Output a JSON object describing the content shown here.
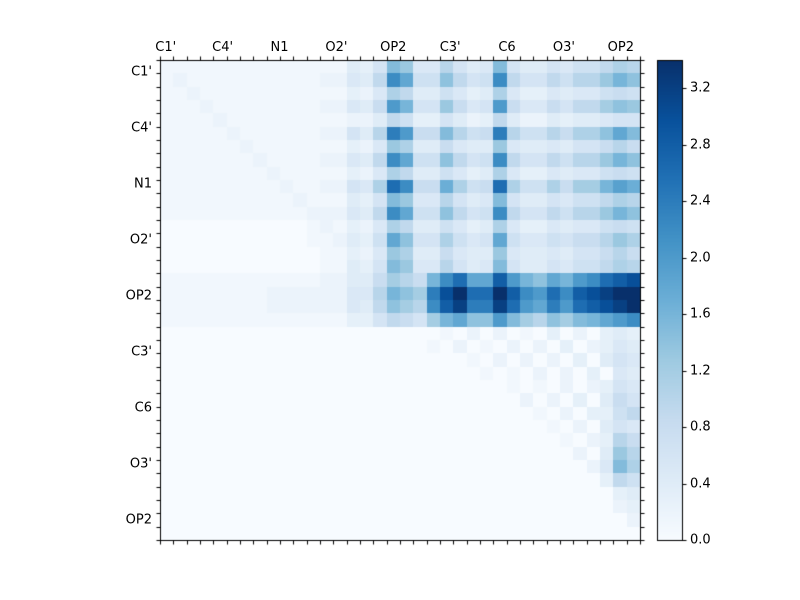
{
  "figure": {
    "background": "#ffffff",
    "frame_color": "#000000",
    "tick_color": "#000000"
  },
  "chart_data": {
    "type": "heatmap",
    "title": "",
    "xlabel": "",
    "ylabel": "",
    "colormap": "Blues",
    "vmin": 0.0,
    "vmax": 3.4,
    "legend_position": "colorbar-right",
    "grid": false,
    "x_labels": [
      "C1'",
      "C4'",
      "N1",
      "O2'",
      "OP2",
      "C3'",
      "C6",
      "O3'",
      "OP2"
    ],
    "y_labels": [
      "C1'",
      "C4'",
      "N1",
      "O2'",
      "OP2",
      "C3'",
      "C6",
      "O3'",
      "OP2"
    ],
    "colorbar_ticks": [
      "0.0",
      "0.4",
      "0.8",
      "1.2",
      "1.6",
      "2.0",
      "2.4",
      "2.8",
      "3.2"
    ],
    "colorbar_tick_values": [
      0.0,
      0.4,
      0.8,
      1.2,
      1.6,
      2.0,
      2.4,
      2.8,
      3.2
    ],
    "n_rows": 36,
    "n_cols": 36,
    "colormap_stops": [
      {
        "t": 0.0,
        "c": "#f7fbff"
      },
      {
        "t": 0.125,
        "c": "#deebf7"
      },
      {
        "t": 0.25,
        "c": "#c6dbef"
      },
      {
        "t": 0.375,
        "c": "#9ecae1"
      },
      {
        "t": 0.5,
        "c": "#6baed6"
      },
      {
        "t": 0.625,
        "c": "#4292c6"
      },
      {
        "t": 0.75,
        "c": "#2171b5"
      },
      {
        "t": 0.875,
        "c": "#08519c"
      },
      {
        "t": 1.0,
        "c": "#08306b"
      }
    ],
    "values": [
      [
        0.1,
        0.1,
        0.1,
        0.1,
        0.1,
        0.1,
        0.1,
        0.1,
        0.1,
        0.1,
        0.1,
        0.1,
        0.1,
        0.1,
        0.4,
        0.3,
        0.6,
        1.5,
        1.3,
        0.5,
        0.5,
        1.0,
        0.6,
        0.4,
        0.5,
        1.5,
        0.6,
        0.4,
        0.4,
        0.6,
        0.5,
        0.7,
        0.7,
        0.9,
        1.1,
        1.0
      ],
      [
        0.1,
        0.2,
        0.1,
        0.1,
        0.1,
        0.1,
        0.1,
        0.1,
        0.1,
        0.1,
        0.1,
        0.1,
        0.2,
        0.2,
        0.5,
        0.4,
        0.9,
        2.2,
        1.8,
        0.7,
        0.7,
        1.4,
        0.9,
        0.6,
        0.7,
        2.2,
        0.9,
        0.6,
        0.6,
        0.9,
        0.7,
        1.0,
        1.0,
        1.3,
        1.6,
        1.4
      ],
      [
        0.1,
        0.1,
        0.2,
        0.1,
        0.1,
        0.1,
        0.1,
        0.1,
        0.1,
        0.1,
        0.1,
        0.1,
        0.1,
        0.1,
        0.3,
        0.2,
        0.5,
        1.1,
        0.9,
        0.4,
        0.4,
        0.7,
        0.5,
        0.3,
        0.4,
        1.1,
        0.5,
        0.3,
        0.3,
        0.5,
        0.4,
        0.5,
        0.5,
        0.7,
        0.8,
        0.7
      ],
      [
        0.1,
        0.1,
        0.1,
        0.2,
        0.1,
        0.1,
        0.1,
        0.1,
        0.1,
        0.1,
        0.1,
        0.1,
        0.2,
        0.2,
        0.5,
        0.4,
        0.8,
        2.0,
        1.6,
        0.6,
        0.6,
        1.3,
        0.8,
        0.5,
        0.6,
        2.0,
        0.8,
        0.5,
        0.5,
        0.8,
        0.6,
        0.9,
        0.9,
        1.2,
        1.4,
        1.3
      ],
      [
        0.1,
        0.1,
        0.1,
        0.1,
        0.2,
        0.1,
        0.1,
        0.1,
        0.1,
        0.1,
        0.1,
        0.1,
        0.1,
        0.1,
        0.2,
        0.2,
        0.4,
        0.9,
        0.7,
        0.3,
        0.3,
        0.6,
        0.4,
        0.2,
        0.3,
        0.9,
        0.4,
        0.2,
        0.2,
        0.4,
        0.3,
        0.4,
        0.4,
        0.5,
        0.6,
        0.6
      ],
      [
        0.1,
        0.1,
        0.1,
        0.1,
        0.1,
        0.2,
        0.1,
        0.1,
        0.1,
        0.1,
        0.1,
        0.1,
        0.2,
        0.2,
        0.6,
        0.4,
        1.0,
        2.4,
        2.0,
        0.8,
        0.8,
        1.5,
        1.0,
        0.7,
        0.8,
        2.4,
        1.0,
        0.7,
        0.7,
        1.0,
        0.8,
        1.1,
        1.1,
        1.4,
        1.8,
        1.5
      ],
      [
        0.1,
        0.1,
        0.1,
        0.1,
        0.1,
        0.1,
        0.2,
        0.1,
        0.1,
        0.1,
        0.1,
        0.1,
        0.1,
        0.1,
        0.3,
        0.2,
        0.5,
        1.3,
        1.1,
        0.4,
        0.4,
        0.8,
        0.5,
        0.4,
        0.4,
        1.3,
        0.5,
        0.4,
        0.4,
        0.5,
        0.4,
        0.6,
        0.6,
        0.8,
        1.0,
        0.8
      ],
      [
        0.1,
        0.1,
        0.1,
        0.1,
        0.1,
        0.1,
        0.1,
        0.2,
        0.1,
        0.1,
        0.1,
        0.1,
        0.2,
        0.2,
        0.5,
        0.4,
        0.9,
        2.2,
        1.8,
        0.7,
        0.7,
        1.4,
        0.9,
        0.6,
        0.7,
        2.2,
        0.9,
        0.6,
        0.6,
        0.9,
        0.7,
        1.0,
        1.0,
        1.3,
        1.6,
        1.4
      ],
      [
        0.1,
        0.1,
        0.1,
        0.1,
        0.1,
        0.1,
        0.1,
        0.1,
        0.2,
        0.1,
        0.1,
        0.1,
        0.1,
        0.1,
        0.3,
        0.2,
        0.5,
        1.1,
        0.9,
        0.4,
        0.4,
        0.7,
        0.5,
        0.3,
        0.4,
        1.1,
        0.5,
        0.3,
        0.3,
        0.5,
        0.4,
        0.5,
        0.5,
        0.7,
        0.8,
        0.7
      ],
      [
        0.1,
        0.1,
        0.1,
        0.1,
        0.1,
        0.1,
        0.1,
        0.1,
        0.1,
        0.2,
        0.1,
        0.1,
        0.2,
        0.2,
        0.6,
        0.5,
        1.1,
        2.6,
        2.2,
        0.8,
        0.8,
        1.7,
        1.1,
        0.7,
        0.8,
        2.6,
        1.1,
        0.7,
        0.7,
        1.1,
        0.8,
        1.2,
        1.2,
        1.6,
        1.9,
        1.7
      ],
      [
        0.1,
        0.1,
        0.1,
        0.1,
        0.1,
        0.1,
        0.1,
        0.1,
        0.1,
        0.1,
        0.2,
        0.1,
        0.1,
        0.1,
        0.4,
        0.3,
        0.6,
        1.5,
        1.3,
        0.5,
        0.5,
        1.0,
        0.6,
        0.4,
        0.5,
        1.5,
        0.6,
        0.4,
        0.4,
        0.6,
        0.5,
        0.7,
        0.7,
        0.9,
        1.1,
        1.0
      ],
      [
        0.1,
        0.1,
        0.1,
        0.1,
        0.1,
        0.1,
        0.1,
        0.1,
        0.1,
        0.1,
        0.1,
        0.2,
        0.2,
        0.2,
        0.5,
        0.4,
        0.9,
        2.2,
        1.8,
        0.7,
        0.7,
        1.4,
        0.9,
        0.6,
        0.7,
        2.2,
        0.9,
        0.6,
        0.6,
        0.9,
        0.7,
        1.0,
        1.0,
        1.3,
        1.6,
        1.4
      ],
      [
        0.0,
        0.0,
        0.0,
        0.0,
        0.0,
        0.0,
        0.0,
        0.0,
        0.0,
        0.0,
        0.0,
        0.1,
        0.2,
        0.1,
        0.3,
        0.2,
        0.5,
        1.1,
        0.9,
        0.4,
        0.4,
        0.7,
        0.5,
        0.3,
        0.4,
        1.1,
        0.5,
        0.3,
        0.3,
        0.5,
        0.4,
        0.5,
        0.5,
        0.7,
        0.8,
        0.7
      ],
      [
        0.0,
        0.0,
        0.0,
        0.0,
        0.0,
        0.0,
        0.0,
        0.0,
        0.0,
        0.0,
        0.0,
        0.1,
        0.1,
        0.2,
        0.4,
        0.3,
        0.7,
        1.8,
        1.4,
        0.6,
        0.6,
        1.1,
        0.7,
        0.5,
        0.6,
        1.8,
        0.7,
        0.5,
        0.5,
        0.7,
        0.6,
        0.8,
        0.8,
        1.0,
        1.3,
        1.1
      ],
      [
        0.0,
        0.0,
        0.0,
        0.0,
        0.0,
        0.0,
        0.0,
        0.0,
        0.0,
        0.0,
        0.0,
        0.0,
        0.1,
        0.1,
        0.3,
        0.2,
        0.5,
        1.3,
        1.1,
        0.4,
        0.4,
        0.8,
        0.5,
        0.4,
        0.4,
        1.3,
        0.5,
        0.4,
        0.4,
        0.5,
        0.4,
        0.6,
        0.6,
        0.8,
        1.0,
        0.8
      ],
      [
        0.0,
        0.0,
        0.0,
        0.0,
        0.0,
        0.0,
        0.0,
        0.0,
        0.0,
        0.0,
        0.0,
        0.0,
        0.1,
        0.1,
        0.4,
        0.3,
        0.6,
        1.5,
        1.3,
        0.5,
        0.5,
        1.0,
        0.6,
        0.4,
        0.5,
        1.5,
        0.6,
        0.4,
        0.4,
        0.6,
        0.5,
        0.7,
        0.7,
        0.9,
        1.1,
        1.0
      ],
      [
        0.1,
        0.1,
        0.1,
        0.1,
        0.1,
        0.1,
        0.1,
        0.1,
        0.1,
        0.1,
        0.1,
        0.1,
        0.2,
        0.2,
        0.4,
        0.4,
        0.8,
        1.2,
        1.0,
        0.8,
        1.6,
        2.2,
        2.6,
        1.8,
        1.8,
        2.8,
        2.0,
        1.6,
        1.4,
        1.8,
        1.6,
        2.0,
        2.2,
        2.6,
        2.8,
        3.0
      ],
      [
        0.1,
        0.1,
        0.1,
        0.1,
        0.1,
        0.1,
        0.1,
        0.1,
        0.2,
        0.2,
        0.2,
        0.2,
        0.2,
        0.2,
        0.5,
        0.5,
        1.0,
        1.6,
        1.4,
        1.2,
        2.4,
        3.0,
        3.4,
        2.6,
        2.6,
        3.4,
        2.8,
        2.2,
        2.0,
        2.6,
        2.2,
        2.8,
        3.0,
        3.2,
        3.4,
        3.4
      ],
      [
        0.1,
        0.1,
        0.1,
        0.1,
        0.1,
        0.1,
        0.1,
        0.1,
        0.2,
        0.2,
        0.2,
        0.2,
        0.2,
        0.2,
        0.5,
        0.4,
        0.9,
        1.4,
        1.2,
        1.0,
        2.2,
        2.8,
        3.2,
        2.4,
        2.4,
        3.2,
        2.6,
        2.0,
        1.8,
        2.4,
        2.0,
        2.6,
        2.8,
        3.0,
        3.2,
        3.4
      ],
      [
        0.1,
        0.1,
        0.1,
        0.1,
        0.1,
        0.1,
        0.1,
        0.1,
        0.1,
        0.1,
        0.1,
        0.1,
        0.1,
        0.1,
        0.3,
        0.3,
        0.6,
        0.9,
        0.8,
        0.6,
        1.2,
        1.6,
        1.8,
        1.4,
        1.4,
        2.0,
        1.5,
        1.2,
        1.0,
        1.4,
        1.2,
        1.5,
        1.6,
        1.8,
        2.0,
        2.2
      ],
      [
        0.0,
        0.0,
        0.0,
        0.0,
        0.0,
        0.0,
        0.0,
        0.0,
        0.0,
        0.0,
        0.0,
        0.0,
        0.0,
        0.0,
        0.0,
        0.0,
        0.0,
        0.0,
        0.0,
        0.0,
        0.0,
        0.1,
        0.0,
        0.2,
        0.0,
        0.2,
        0.0,
        0.1,
        0.0,
        0.3,
        0.0,
        0.2,
        0.0,
        0.3,
        0.4,
        0.3
      ],
      [
        0.0,
        0.0,
        0.0,
        0.0,
        0.0,
        0.0,
        0.0,
        0.0,
        0.0,
        0.0,
        0.0,
        0.0,
        0.0,
        0.0,
        0.0,
        0.0,
        0.0,
        0.0,
        0.0,
        0.0,
        0.1,
        0.0,
        0.2,
        0.0,
        0.1,
        0.0,
        0.2,
        0.0,
        0.2,
        0.0,
        0.3,
        0.0,
        0.2,
        0.3,
        0.5,
        0.4
      ],
      [
        0.0,
        0.0,
        0.0,
        0.0,
        0.0,
        0.0,
        0.0,
        0.0,
        0.0,
        0.0,
        0.0,
        0.0,
        0.0,
        0.0,
        0.0,
        0.0,
        0.0,
        0.0,
        0.0,
        0.0,
        0.0,
        0.0,
        0.0,
        0.1,
        0.0,
        0.2,
        0.0,
        0.2,
        0.0,
        0.2,
        0.0,
        0.3,
        0.0,
        0.4,
        0.6,
        0.5
      ],
      [
        0.0,
        0.0,
        0.0,
        0.0,
        0.0,
        0.0,
        0.0,
        0.0,
        0.0,
        0.0,
        0.0,
        0.0,
        0.0,
        0.0,
        0.0,
        0.0,
        0.0,
        0.0,
        0.0,
        0.0,
        0.0,
        0.0,
        0.0,
        0.0,
        0.1,
        0.0,
        0.1,
        0.0,
        0.2,
        0.0,
        0.2,
        0.0,
        0.3,
        0.0,
        0.5,
        0.4
      ],
      [
        0.0,
        0.0,
        0.0,
        0.0,
        0.0,
        0.0,
        0.0,
        0.0,
        0.0,
        0.0,
        0.0,
        0.0,
        0.0,
        0.0,
        0.0,
        0.0,
        0.0,
        0.0,
        0.0,
        0.0,
        0.0,
        0.0,
        0.0,
        0.0,
        0.0,
        0.0,
        0.1,
        0.0,
        0.1,
        0.0,
        0.2,
        0.0,
        0.2,
        0.3,
        0.6,
        0.5
      ],
      [
        0.0,
        0.0,
        0.0,
        0.0,
        0.0,
        0.0,
        0.0,
        0.0,
        0.0,
        0.0,
        0.0,
        0.0,
        0.0,
        0.0,
        0.0,
        0.0,
        0.0,
        0.0,
        0.0,
        0.0,
        0.0,
        0.0,
        0.0,
        0.0,
        0.0,
        0.0,
        0.0,
        0.2,
        0.0,
        0.2,
        0.0,
        0.3,
        0.0,
        0.4,
        0.8,
        0.6
      ],
      [
        0.0,
        0.0,
        0.0,
        0.0,
        0.0,
        0.0,
        0.0,
        0.0,
        0.0,
        0.0,
        0.0,
        0.0,
        0.0,
        0.0,
        0.0,
        0.0,
        0.0,
        0.0,
        0.0,
        0.0,
        0.0,
        0.0,
        0.0,
        0.0,
        0.0,
        0.0,
        0.0,
        0.0,
        0.1,
        0.0,
        0.2,
        0.0,
        0.3,
        0.3,
        0.7,
        0.9
      ],
      [
        0.0,
        0.0,
        0.0,
        0.0,
        0.0,
        0.0,
        0.0,
        0.0,
        0.0,
        0.0,
        0.0,
        0.0,
        0.0,
        0.0,
        0.0,
        0.0,
        0.0,
        0.0,
        0.0,
        0.0,
        0.0,
        0.0,
        0.0,
        0.0,
        0.0,
        0.0,
        0.0,
        0.0,
        0.0,
        0.1,
        0.0,
        0.2,
        0.0,
        0.4,
        0.6,
        0.5
      ],
      [
        0.0,
        0.0,
        0.0,
        0.0,
        0.0,
        0.0,
        0.0,
        0.0,
        0.0,
        0.0,
        0.0,
        0.0,
        0.0,
        0.0,
        0.0,
        0.0,
        0.0,
        0.0,
        0.0,
        0.0,
        0.0,
        0.0,
        0.0,
        0.0,
        0.0,
        0.0,
        0.0,
        0.0,
        0.0,
        0.0,
        0.1,
        0.0,
        0.2,
        0.3,
        1.0,
        0.8
      ],
      [
        0.0,
        0.0,
        0.0,
        0.0,
        0.0,
        0.0,
        0.0,
        0.0,
        0.0,
        0.0,
        0.0,
        0.0,
        0.0,
        0.0,
        0.0,
        0.0,
        0.0,
        0.0,
        0.0,
        0.0,
        0.0,
        0.0,
        0.0,
        0.0,
        0.0,
        0.0,
        0.0,
        0.0,
        0.0,
        0.0,
        0.0,
        0.2,
        0.0,
        0.4,
        1.3,
        1.0
      ],
      [
        0.0,
        0.0,
        0.0,
        0.0,
        0.0,
        0.0,
        0.0,
        0.0,
        0.0,
        0.0,
        0.0,
        0.0,
        0.0,
        0.0,
        0.0,
        0.0,
        0.0,
        0.0,
        0.0,
        0.0,
        0.0,
        0.0,
        0.0,
        0.0,
        0.0,
        0.0,
        0.0,
        0.0,
        0.0,
        0.0,
        0.0,
        0.0,
        0.2,
        0.5,
        1.5,
        1.1
      ],
      [
        0.0,
        0.0,
        0.0,
        0.0,
        0.0,
        0.0,
        0.0,
        0.0,
        0.0,
        0.0,
        0.0,
        0.0,
        0.0,
        0.0,
        0.0,
        0.0,
        0.0,
        0.0,
        0.0,
        0.0,
        0.0,
        0.0,
        0.0,
        0.0,
        0.0,
        0.0,
        0.0,
        0.0,
        0.0,
        0.0,
        0.0,
        0.0,
        0.0,
        0.3,
        0.9,
        0.7
      ],
      [
        0.0,
        0.0,
        0.0,
        0.0,
        0.0,
        0.0,
        0.0,
        0.0,
        0.0,
        0.0,
        0.0,
        0.0,
        0.0,
        0.0,
        0.0,
        0.0,
        0.0,
        0.0,
        0.0,
        0.0,
        0.0,
        0.0,
        0.0,
        0.0,
        0.0,
        0.0,
        0.0,
        0.0,
        0.0,
        0.0,
        0.0,
        0.0,
        0.0,
        0.0,
        0.3,
        0.4
      ],
      [
        0.0,
        0.0,
        0.0,
        0.0,
        0.0,
        0.0,
        0.0,
        0.0,
        0.0,
        0.0,
        0.0,
        0.0,
        0.0,
        0.0,
        0.0,
        0.0,
        0.0,
        0.0,
        0.0,
        0.0,
        0.0,
        0.0,
        0.0,
        0.0,
        0.0,
        0.0,
        0.0,
        0.0,
        0.0,
        0.0,
        0.0,
        0.0,
        0.0,
        0.0,
        0.2,
        0.3
      ],
      [
        0.0,
        0.0,
        0.0,
        0.0,
        0.0,
        0.0,
        0.0,
        0.0,
        0.0,
        0.0,
        0.0,
        0.0,
        0.0,
        0.0,
        0.0,
        0.0,
        0.0,
        0.0,
        0.0,
        0.0,
        0.0,
        0.0,
        0.0,
        0.0,
        0.0,
        0.0,
        0.0,
        0.0,
        0.0,
        0.0,
        0.0,
        0.0,
        0.0,
        0.0,
        0.0,
        0.2
      ],
      [
        0.0,
        0.0,
        0.0,
        0.0,
        0.0,
        0.0,
        0.0,
        0.0,
        0.0,
        0.0,
        0.0,
        0.0,
        0.0,
        0.0,
        0.0,
        0.0,
        0.0,
        0.0,
        0.0,
        0.0,
        0.0,
        0.0,
        0.0,
        0.0,
        0.0,
        0.0,
        0.0,
        0.0,
        0.0,
        0.0,
        0.0,
        0.0,
        0.0,
        0.0,
        0.0,
        0.0
      ]
    ]
  }
}
